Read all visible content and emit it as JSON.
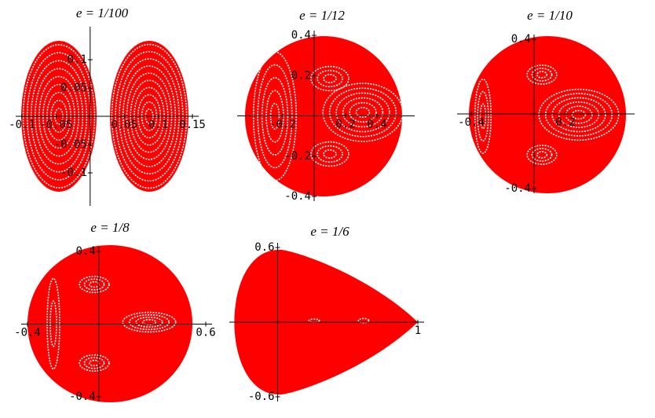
{
  "chart_data": [
    {
      "type": "scatter",
      "title": "e = 1/100",
      "color": "#ff0000",
      "xlim": [
        -0.1,
        0.15
      ],
      "xticks": [
        -0.1,
        -0.05,
        0.05,
        0.1,
        0.15
      ],
      "ylim": [
        -0.15,
        0.15
      ],
      "yticks": [
        -0.1,
        -0.05,
        0.05,
        0.1
      ]
    },
    {
      "type": "scatter",
      "title": "e = 1/12",
      "color": "#ff0000",
      "xlim": [
        -0.45,
        0.6
      ],
      "xticks": [
        -0.2,
        0.2,
        0.4
      ],
      "ylim": [
        -0.4,
        0.4
      ],
      "yticks": [
        -0.4,
        -0.2,
        0.2,
        0.4
      ]
    },
    {
      "type": "scatter",
      "title": "e = 1/10",
      "color": "#ff0000",
      "xlim": [
        -0.45,
        0.6
      ],
      "xticks": [
        -0.4,
        0.2
      ],
      "ylim": [
        -0.4,
        0.4
      ],
      "yticks": [
        -0.4,
        0.4
      ]
    },
    {
      "type": "scatter",
      "title": "e = 1/8",
      "color": "#ff0000",
      "xlim": [
        -0.4,
        0.6
      ],
      "xticks": [
        -0.4,
        0.6
      ],
      "ylim": [
        -0.4,
        0.4
      ],
      "yticks": [
        -0.4,
        0.4
      ]
    },
    {
      "type": "scatter",
      "title": "e = 1/6",
      "color": "#ff0000",
      "xlim": [
        -0.3,
        1
      ],
      "xticks": [
        1
      ],
      "ylim": [
        -0.6,
        0.6
      ],
      "yticks": [
        -0.6,
        0.6
      ]
    }
  ]
}
